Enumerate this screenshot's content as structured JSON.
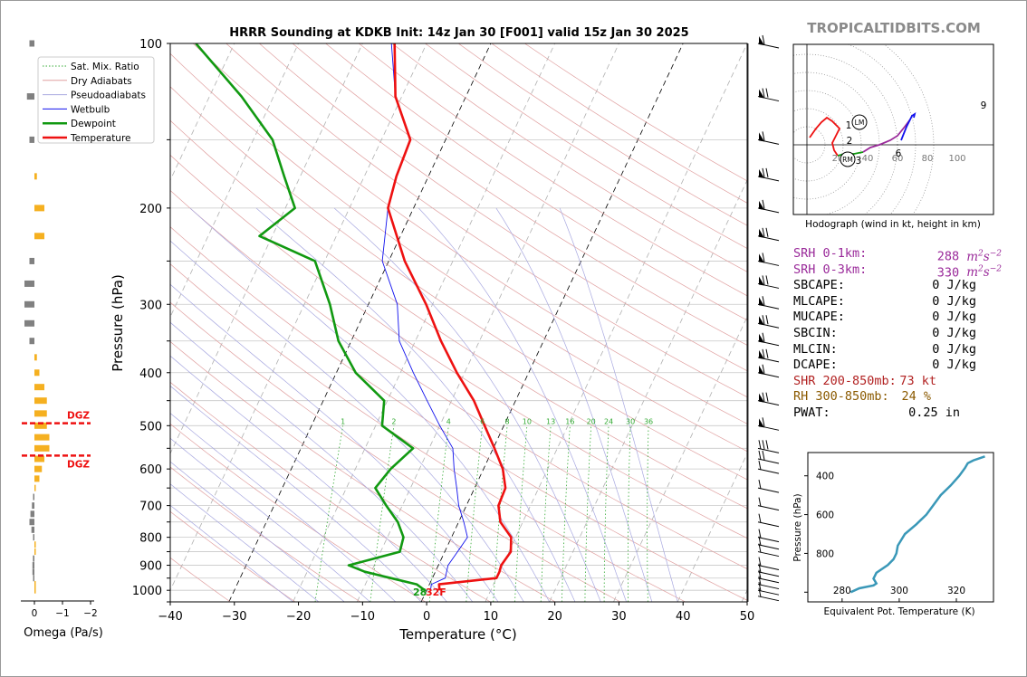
{
  "title": "HRRR Sounding at KDKB Init: 14z Jan 30 [F001] valid 15z Jan 30 2025",
  "watermark": "TROPICALTIDBITS.COM",
  "colors": {
    "temperature": "#ee1111",
    "dewpoint": "#119911",
    "wetbulb": "#1111ee",
    "srh": "#9a2a9a",
    "shr": "#b22222",
    "rh": "#8b5a00",
    "omega_pos": "#f5b020",
    "omega_neg": "#808080",
    "theta_e": "#3a98b8"
  },
  "chart_data": [
    {
      "type": "line",
      "name": "skewt",
      "xlabel": "Temperature (°C)",
      "ylabel": "Pressure (hPa)",
      "xlim": [
        -40,
        50
      ],
      "ylim": [
        1050,
        100
      ],
      "yscale": "log",
      "x_ticks": [
        -40,
        -30,
        -20,
        -10,
        0,
        10,
        20,
        30,
        40,
        50
      ],
      "y_ticks": [
        100,
        200,
        300,
        400,
        500,
        600,
        700,
        800,
        900,
        1000
      ],
      "mixing_ratio_labels": [
        "1",
        "2",
        "4",
        "6",
        "8",
        "10",
        "13",
        "16",
        "20",
        "24",
        "30",
        "36"
      ],
      "surface_label": "28",
      "surface_label2": "32F",
      "legend": [
        "Sat. Mix. Ratio",
        "Dry Adiabats",
        "Pseudoadiabats",
        "Wetbulb",
        "Dewpoint",
        "Temperature"
      ],
      "series": [
        {
          "name": "Temperature",
          "points": [
            [
              1000,
              2.0
            ],
            [
              975,
              1.5
            ],
            [
              950,
              10.0
            ],
            [
              925,
              10.0
            ],
            [
              900,
              9.8
            ],
            [
              850,
              10.3
            ],
            [
              800,
              9.3
            ],
            [
              750,
              6.5
            ],
            [
              700,
              5.0
            ],
            [
              650,
              4.8
            ],
            [
              600,
              3.0
            ],
            [
              550,
              0.2
            ],
            [
              500,
              -3.0
            ],
            [
              450,
              -6.5
            ],
            [
              400,
              -11.2
            ],
            [
              350,
              -16.0
            ],
            [
              300,
              -21.0
            ],
            [
              250,
              -27.5
            ],
            [
              200,
              -34.0
            ],
            [
              175,
              -35.0
            ],
            [
              150,
              -35.5
            ],
            [
              125,
              -41.0
            ],
            [
              100,
              -45.0
            ]
          ]
        },
        {
          "name": "Dewpoint",
          "points": [
            [
              1000,
              -0.3
            ],
            [
              975,
              -2.0
            ],
            [
              950,
              -6.5
            ],
            [
              925,
              -11.0
            ],
            [
              900,
              -14.0
            ],
            [
              850,
              -7.0
            ],
            [
              800,
              -7.5
            ],
            [
              750,
              -9.5
            ],
            [
              700,
              -12.5
            ],
            [
              650,
              -15.5
            ],
            [
              600,
              -14.5
            ],
            [
              550,
              -12.5
            ],
            [
              500,
              -19.0
            ],
            [
              450,
              -20.5
            ],
            [
              400,
              -27.0
            ],
            [
              350,
              -32.0
            ],
            [
              300,
              -36.0
            ],
            [
              250,
              -41.5
            ],
            [
              225,
              -52.0
            ],
            [
              200,
              -48.5
            ],
            [
              175,
              -52.5
            ],
            [
              150,
              -57.0
            ],
            [
              125,
              -65.0
            ],
            [
              100,
              -76.0
            ]
          ]
        },
        {
          "name": "Wetbulb",
          "points": [
            [
              1000,
              0.6
            ],
            [
              975,
              0.3
            ],
            [
              950,
              2.0
            ],
            [
              900,
              1.5
            ],
            [
              850,
              2.0
            ],
            [
              800,
              2.5
            ],
            [
              750,
              0.8
            ],
            [
              700,
              -1.2
            ],
            [
              650,
              -2.8
            ],
            [
              600,
              -4.6
            ],
            [
              550,
              -6.3
            ],
            [
              500,
              -10.0
            ],
            [
              450,
              -13.8
            ],
            [
              400,
              -18.0
            ],
            [
              350,
              -22.5
            ],
            [
              300,
              -25.5
            ],
            [
              250,
              -31.0
            ],
            [
              200,
              -34.0
            ],
            [
              175,
              -35.0
            ],
            [
              150,
              -35.5
            ],
            [
              125,
              -41.0
            ],
            [
              100,
              -45.5
            ]
          ]
        }
      ]
    },
    {
      "type": "bar",
      "name": "omega",
      "xlabel": "Omega (Pa/s)",
      "x_ticks": [
        "0",
        "−1",
        "−2"
      ],
      "dgz_label": "DGZ",
      "dgz_top_hPa": 495,
      "dgz_bottom_hPa": 567,
      "values": [
        [
          100,
          -0.1
        ],
        [
          125,
          -0.15
        ],
        [
          150,
          -0.1
        ],
        [
          175,
          0.05
        ],
        [
          200,
          0.2
        ],
        [
          225,
          0.2
        ],
        [
          250,
          -0.1
        ],
        [
          275,
          -0.2
        ],
        [
          300,
          -0.2
        ],
        [
          325,
          -0.2
        ],
        [
          350,
          -0.1
        ],
        [
          375,
          0.05
        ],
        [
          400,
          0.1
        ],
        [
          425,
          0.2
        ],
        [
          450,
          0.25
        ],
        [
          475,
          0.25
        ],
        [
          500,
          0.25
        ],
        [
          525,
          0.3
        ],
        [
          550,
          0.3
        ],
        [
          575,
          0.2
        ],
        [
          600,
          0.15
        ],
        [
          625,
          0.1
        ],
        [
          650,
          0.02
        ],
        [
          675,
          -0.02
        ],
        [
          700,
          -0.05
        ],
        [
          725,
          -0.08
        ],
        [
          750,
          -0.1
        ],
        [
          775,
          -0.06
        ],
        [
          800,
          -0.02
        ],
        [
          825,
          0.02
        ],
        [
          850,
          0.0
        ],
        [
          875,
          -0.03
        ],
        [
          900,
          -0.04
        ],
        [
          925,
          -0.04
        ],
        [
          950,
          -0.02
        ],
        [
          975,
          0.02
        ],
        [
          1000,
          0.02
        ]
      ]
    },
    {
      "type": "line",
      "name": "hodograph",
      "xlabel": "Hodograph (wind in kt, height in km)",
      "ring_labels": [
        "20",
        "40",
        "60",
        "80",
        "100"
      ],
      "height_labels": [
        "1",
        "2",
        "3",
        "6",
        "9"
      ],
      "marker_labels": [
        "LM",
        "RM"
      ],
      "segments": [
        {
          "color": "#ee1111",
          "points": [
            [
              3,
              8
            ],
            [
              10,
              18
            ],
            [
              16,
              25
            ],
            [
              22,
              30
            ],
            [
              28,
              26
            ],
            [
              36,
              18
            ],
            [
              32,
              10
            ],
            [
              28,
              2
            ],
            [
              30,
              -6
            ],
            [
              34,
              -12
            ]
          ]
        },
        {
          "color": "#119911",
          "points": [
            [
              34,
              -12
            ],
            [
              42,
              -10
            ],
            [
              52,
              -10
            ],
            [
              62,
              -8
            ]
          ]
        },
        {
          "color": "#9a2a9a",
          "points": [
            [
              62,
              -8
            ],
            [
              70,
              -3
            ],
            [
              80,
              0
            ],
            [
              92,
              5
            ],
            [
              100,
              10
            ],
            [
              108,
              20
            ],
            [
              114,
              28
            ]
          ]
        },
        {
          "color": "#1111ee",
          "points": [
            [
              104,
              5
            ],
            [
              110,
              20
            ],
            [
              116,
              32
            ],
            [
              119,
              34
            ],
            [
              118,
              30
            ]
          ]
        }
      ]
    },
    {
      "type": "line",
      "name": "theta_e",
      "xlabel": "Equivalent Pot. Temperature (K)",
      "ylabel": "Pressure (hPa)",
      "x_ticks": [
        280,
        300,
        320
      ],
      "y_ticks": [
        400,
        600,
        800
      ],
      "points": [
        [
          1000,
          283
        ],
        [
          980,
          286
        ],
        [
          965,
          291
        ],
        [
          955,
          292
        ],
        [
          930,
          291
        ],
        [
          900,
          292
        ],
        [
          860,
          296
        ],
        [
          830,
          298
        ],
        [
          800,
          299
        ],
        [
          760,
          299.5
        ],
        [
          700,
          302
        ],
        [
          650,
          306
        ],
        [
          600,
          309.5
        ],
        [
          550,
          312
        ],
        [
          500,
          314.5
        ],
        [
          450,
          318
        ],
        [
          400,
          321
        ],
        [
          360,
          323
        ],
        [
          335,
          324
        ],
        [
          320,
          326
        ],
        [
          300,
          330
        ]
      ]
    }
  ],
  "params": {
    "srh1_label": "SRH 0-1km:",
    "srh1_value": "288",
    "srh3_label": "SRH 0-3km:",
    "srh3_value": "330",
    "srh_unit_base": "m",
    "srh_unit_exp1": "2",
    "srh_unit_mid": "s",
    "srh_unit_exp2": "−2",
    "sbcape_label": "SBCAPE:",
    "sbcape_value": "0 J/kg",
    "mlcape_label": "MLCAPE:",
    "mlcape_value": "0 J/kg",
    "mucape_label": "MUCAPE:",
    "mucape_value": "0 J/kg",
    "sbcin_label": "SBCIN:",
    "sbcin_value": "0 J/kg",
    "mlcin_label": "MLCIN:",
    "mlcin_value": "0 J/kg",
    "dcape_label": "DCAPE:",
    "dcape_value": "0 J/kg",
    "shr_label": "SHR 200-850mb:",
    "shr_value": "73 kt",
    "rh_label": "RH 300-850mb:",
    "rh_value": "24 %",
    "pwat_label": "PWAT:",
    "pwat_value": "0.25 in"
  }
}
